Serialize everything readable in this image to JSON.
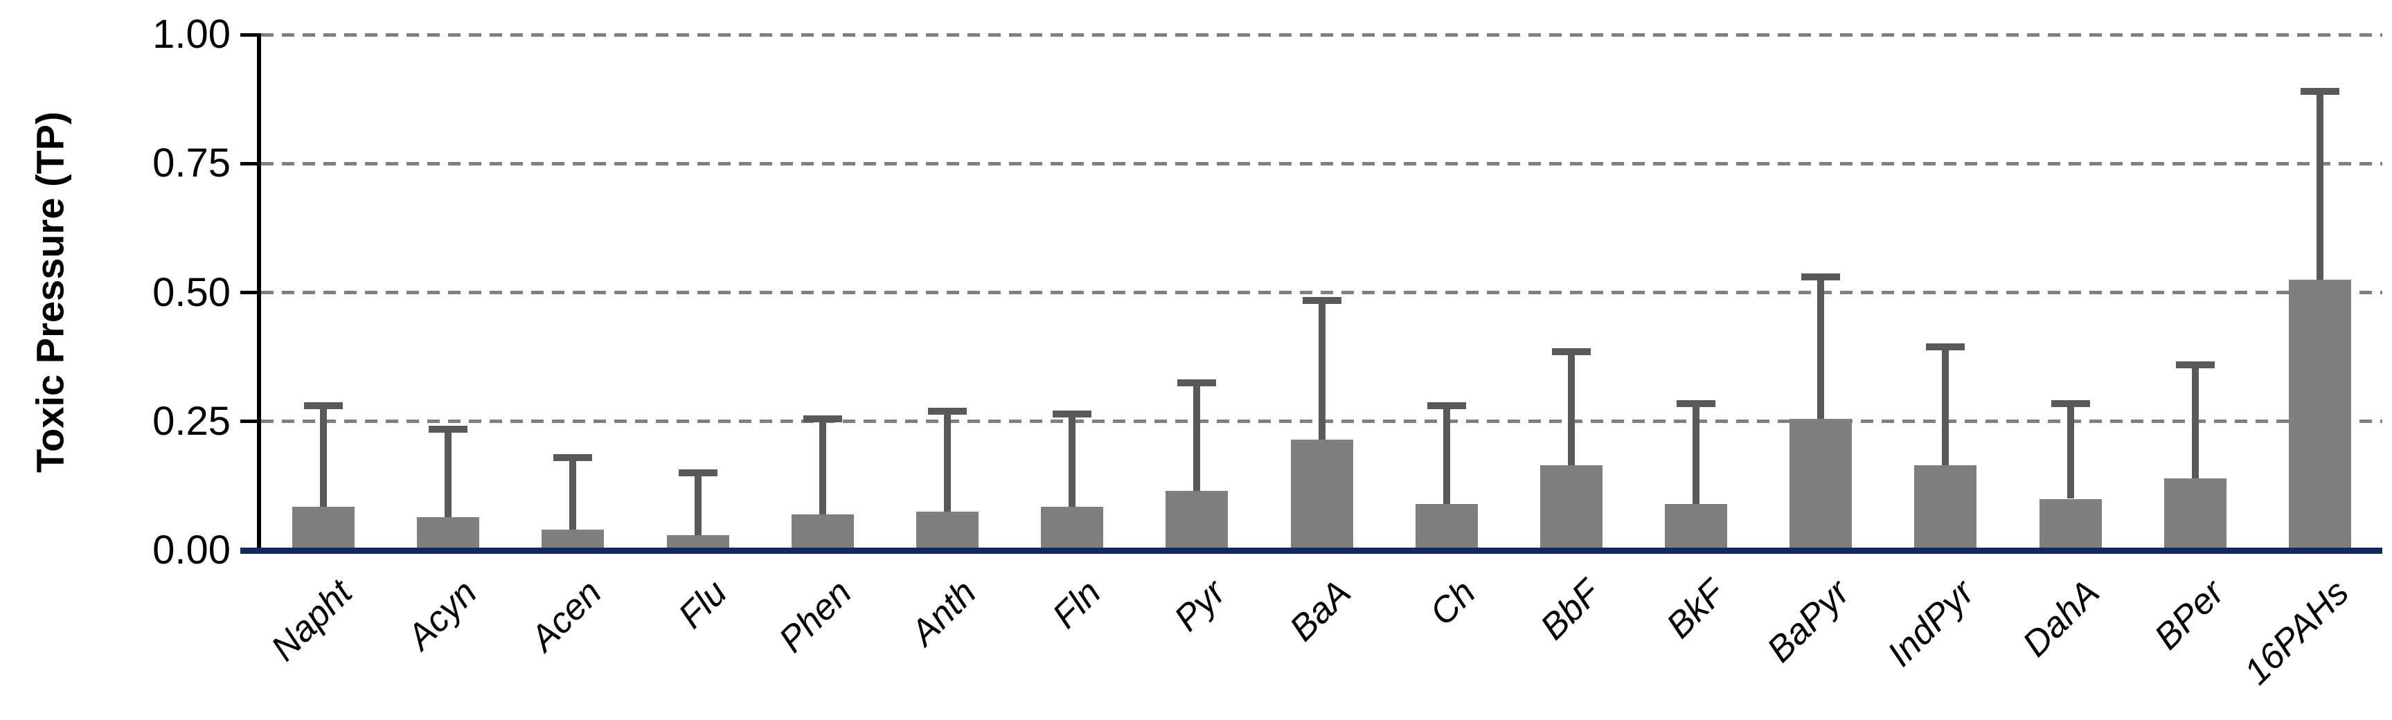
{
  "chart_data": {
    "type": "bar",
    "title": "",
    "xlabel": "",
    "ylabel": "Toxic Pressure (TP)",
    "ylim": [
      0,
      1.0
    ],
    "ytick_values": [
      0,
      0.25,
      0.5,
      0.75,
      1.0
    ],
    "ytick_labels": [
      "0.00",
      "0.25",
      "0.50",
      "0.75",
      "1.00"
    ],
    "grid": "horizontal dashed at 0.25, 0.50, 0.75, 1.00",
    "legend_position": "none",
    "categories": [
      "Napht",
      "Acyn",
      "Acen",
      "Flu",
      "Phen",
      "Anth",
      "Fln",
      "Pyr",
      "BaA",
      "Ch",
      "BbF",
      "BkF",
      "BaPyr",
      "IndPyr",
      "DahA",
      "BPer",
      "16PAHs"
    ],
    "series": [
      {
        "name": "Toxic Pressure (TP)",
        "values": [
          0.085,
          0.065,
          0.04,
          0.03,
          0.07,
          0.075,
          0.085,
          0.115,
          0.215,
          0.09,
          0.165,
          0.09,
          0.255,
          0.165,
          0.1,
          0.14,
          0.525
        ],
        "error_plus": [
          0.195,
          0.17,
          0.14,
          0.12,
          0.185,
          0.195,
          0.18,
          0.21,
          0.27,
          0.19,
          0.22,
          0.195,
          0.275,
          0.23,
          0.185,
          0.22,
          0.365
        ],
        "error_top_values": [
          0.28,
          0.235,
          0.18,
          0.15,
          0.255,
          0.27,
          0.265,
          0.325,
          0.485,
          0.28,
          0.385,
          0.285,
          0.53,
          0.395,
          0.285,
          0.36,
          0.89
        ]
      }
    ],
    "colors": {
      "bar_fill": "#7f7f7f",
      "error_bar": "#595959",
      "gridline": "#7f7f7f",
      "baseline": "#0f2a66",
      "axis": "#000000",
      "text": "#000000"
    }
  }
}
